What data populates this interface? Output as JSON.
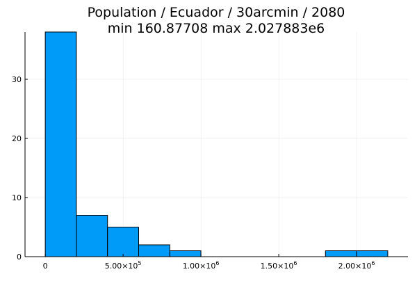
{
  "chart_data": {
    "type": "bar",
    "title_line1": "Population / Ecuador / 30arcmin / 2080",
    "title_line2": "min 160.87708  max 2.027883e6",
    "xlabel": "",
    "ylabel": "",
    "bin_width": 200000,
    "bins": [
      {
        "start": 0,
        "end": 200000,
        "count": 38
      },
      {
        "start": 200000,
        "end": 400000,
        "count": 7
      },
      {
        "start": 400000,
        "end": 600000,
        "count": 5
      },
      {
        "start": 600000,
        "end": 800000,
        "count": 2
      },
      {
        "start": 800000,
        "end": 1000000,
        "count": 1
      },
      {
        "start": 1000000,
        "end": 1200000,
        "count": 0
      },
      {
        "start": 1200000,
        "end": 1400000,
        "count": 0
      },
      {
        "start": 1400000,
        "end": 1600000,
        "count": 0
      },
      {
        "start": 1600000,
        "end": 1800000,
        "count": 0
      },
      {
        "start": 1800000,
        "end": 2000000,
        "count": 1
      },
      {
        "start": 2000000,
        "end": 2200000,
        "count": 1
      }
    ],
    "x_ticks": [
      {
        "value": 0,
        "mantissa": "0",
        "exponent": ""
      },
      {
        "value": 500000,
        "mantissa": "5.00×10",
        "exponent": "5"
      },
      {
        "value": 1000000,
        "mantissa": "1.00×10",
        "exponent": "6"
      },
      {
        "value": 1500000,
        "mantissa": "1.50×10",
        "exponent": "6"
      },
      {
        "value": 2000000,
        "mantissa": "2.00×10",
        "exponent": "6"
      }
    ],
    "y_ticks": [
      {
        "value": 0,
        "label": "0"
      },
      {
        "value": 10,
        "label": "10"
      },
      {
        "value": 20,
        "label": "20"
      },
      {
        "value": 30,
        "label": "30"
      }
    ],
    "xlim": [
      -130000,
      2330000
    ],
    "ylim": [
      0,
      38
    ],
    "grid": true,
    "legend": false,
    "bar_color": "#009af9",
    "bar_edge_color": "#000000"
  }
}
